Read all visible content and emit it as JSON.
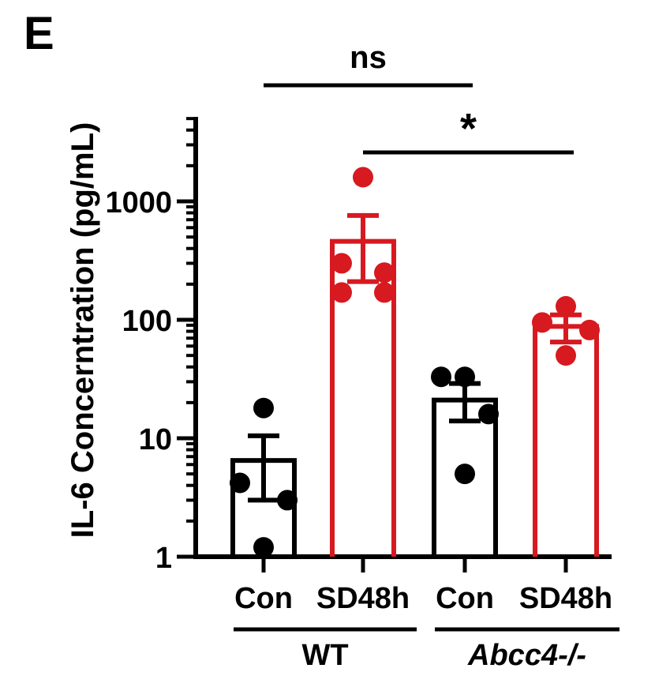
{
  "panel_label": "E",
  "colors": {
    "control": "#000000",
    "sd": "#d71920"
  },
  "chart_data": {
    "type": "bar",
    "scale": "log",
    "ylabel": "IL-6 Concerntration (pg/mL)",
    "ylim": [
      1,
      5000
    ],
    "yticks": [
      {
        "value": 1,
        "label": "1"
      },
      {
        "value": 10,
        "label": "10"
      },
      {
        "value": 100,
        "label": "100"
      },
      {
        "value": 1000,
        "label": "1000"
      }
    ],
    "categories": [
      "Con",
      "SD48h",
      "Con",
      "SD48h"
    ],
    "groups": [
      {
        "label": "WT",
        "italic": false,
        "members": [
          0,
          1
        ]
      },
      {
        "label": "Abcc4-/-",
        "italic": true,
        "members": [
          2,
          3
        ]
      }
    ],
    "bars": [
      {
        "category": "Con",
        "group": "WT",
        "color": "control",
        "mean": 6.5,
        "sem": [
          3.0,
          10.5
        ],
        "points": [
          18,
          4.2,
          3.0,
          1.2
        ]
      },
      {
        "category": "SD48h",
        "group": "WT",
        "color": "sd",
        "mean": 460,
        "sem": [
          210,
          760
        ],
        "points": [
          1600,
          300,
          250,
          170,
          170
        ]
      },
      {
        "category": "Con",
        "group": "Abcc4-/-",
        "color": "control",
        "mean": 21,
        "sem": [
          14,
          29
        ],
        "points": [
          33,
          33,
          16,
          5.0
        ]
      },
      {
        "category": "SD48h",
        "group": "Abcc4-/-",
        "color": "sd",
        "mean": 88,
        "sem": [
          65,
          110
        ],
        "points": [
          130,
          95,
          82,
          50
        ]
      }
    ],
    "significance": [
      {
        "label": "ns",
        "from": 0,
        "to": 2
      },
      {
        "label": "*",
        "from": 1,
        "to": 3
      }
    ]
  }
}
